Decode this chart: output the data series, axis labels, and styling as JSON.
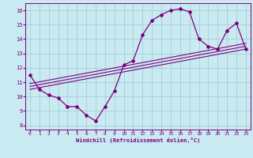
{
  "xlabel": "Windchill (Refroidissement éolien,°C)",
  "bg_color": "#c8eaf0",
  "line_color": "#800080",
  "grid_color": "#a0c8d8",
  "xlim": [
    -0.5,
    23.5
  ],
  "ylim": [
    7.7,
    16.5
  ],
  "x_ticks": [
    0,
    1,
    2,
    3,
    4,
    5,
    6,
    7,
    8,
    9,
    10,
    11,
    12,
    13,
    14,
    15,
    16,
    17,
    18,
    19,
    20,
    21,
    22,
    23
  ],
  "y_ticks": [
    8,
    9,
    10,
    11,
    12,
    13,
    14,
    15,
    16
  ],
  "hours": [
    0,
    1,
    2,
    3,
    4,
    5,
    6,
    7,
    8,
    9,
    10,
    11,
    12,
    13,
    14,
    15,
    16,
    17,
    18,
    19,
    20,
    21,
    22,
    23
  ],
  "temp_line": [
    11.5,
    10.5,
    10.1,
    9.9,
    9.3,
    9.3,
    8.7,
    8.3,
    9.3,
    10.4,
    12.2,
    12.5,
    14.3,
    15.3,
    15.7,
    16.0,
    16.1,
    15.9,
    14.0,
    13.5,
    13.3,
    14.6,
    15.1,
    13.3
  ],
  "diag_line1_x": [
    0,
    23
  ],
  "diag_line1_y": [
    10.5,
    13.3
  ],
  "diag_line2_x": [
    0,
    23
  ],
  "diag_line2_y": [
    10.7,
    13.5
  ],
  "diag_line3_x": [
    0,
    23
  ],
  "diag_line3_y": [
    10.9,
    13.7
  ]
}
